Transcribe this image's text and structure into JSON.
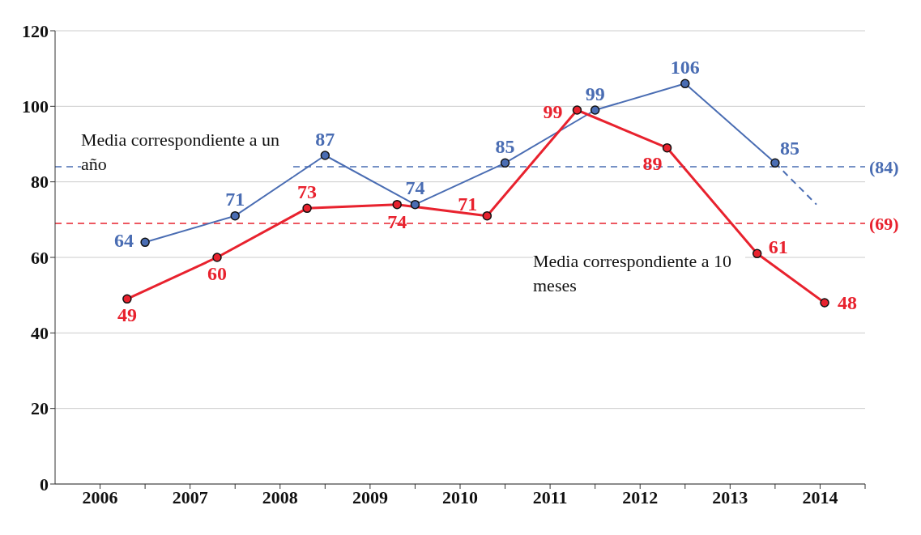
{
  "chart_data": {
    "type": "line",
    "xlim": [
      2005.5,
      2014.5
    ],
    "xticks": [
      {
        "value": 2006,
        "label": "2006"
      },
      {
        "value": 2007,
        "label": "2007"
      },
      {
        "value": 2008,
        "label": "2008"
      },
      {
        "value": 2009,
        "label": "2009"
      },
      {
        "value": 2010,
        "label": "2010"
      },
      {
        "value": 2011,
        "label": "2011"
      },
      {
        "value": 2012,
        "label": "2012"
      },
      {
        "value": 2013,
        "label": "2013"
      },
      {
        "value": 2014,
        "label": "2014"
      },
      {
        "value": 2006.5,
        "label": null
      },
      {
        "value": 2007.5,
        "label": null
      },
      {
        "value": 2008.5,
        "label": null
      },
      {
        "value": 2009.5,
        "label": null
      },
      {
        "value": 2010.5,
        "label": null
      },
      {
        "value": 2011.5,
        "label": null
      },
      {
        "value": 2012.5,
        "label": null
      },
      {
        "value": 2013.5,
        "label": null
      },
      {
        "value": 2014.5,
        "label": null
      }
    ],
    "ylim": [
      0,
      120
    ],
    "yticks": [
      0,
      20,
      40,
      60,
      80,
      100,
      120
    ],
    "grid": "y",
    "legend": false,
    "marker": "circle",
    "series": [
      {
        "color": "#4a6db3",
        "x": [
          2006.5,
          2007.5,
          2008.5,
          2009.5,
          2010.5,
          2011.5,
          2012.5,
          2013.5
        ],
        "values": [
          64,
          71,
          87,
          74,
          85,
          99,
          106,
          85
        ],
        "value_labels": [
          "64",
          "71",
          "87",
          "74",
          "85",
          "99",
          "106",
          "85"
        ]
      },
      {
        "color": "#e8222e",
        "x": [
          2006.3,
          2007.3,
          2008.3,
          2009.3,
          2010.3,
          2011.3,
          2012.3,
          2013.3,
          2014.05
        ],
        "values": [
          49,
          60,
          73,
          74,
          71,
          99,
          89,
          61,
          48
        ],
        "value_labels": [
          "49",
          "60",
          "73",
          "74",
          "71",
          "99",
          "89",
          "61",
          "48"
        ]
      },
      {
        "color": "#4a6db3",
        "x": [
          2013.5,
          2013.96
        ],
        "values": [
          85,
          74
        ],
        "line_style": "dashed",
        "marker": "none"
      }
    ],
    "ref_lines": [
      {
        "axis": "y",
        "value": 84,
        "label": "(84)",
        "color": "#4a6db3",
        "line_style": "dashed"
      },
      {
        "axis": "y",
        "value": 69,
        "label": "(69)",
        "color": "#e8222e",
        "line_style": "dashed"
      }
    ],
    "annotations": [
      "Media correspondiente a un año",
      "Media correspondiente a 10 meses"
    ]
  }
}
